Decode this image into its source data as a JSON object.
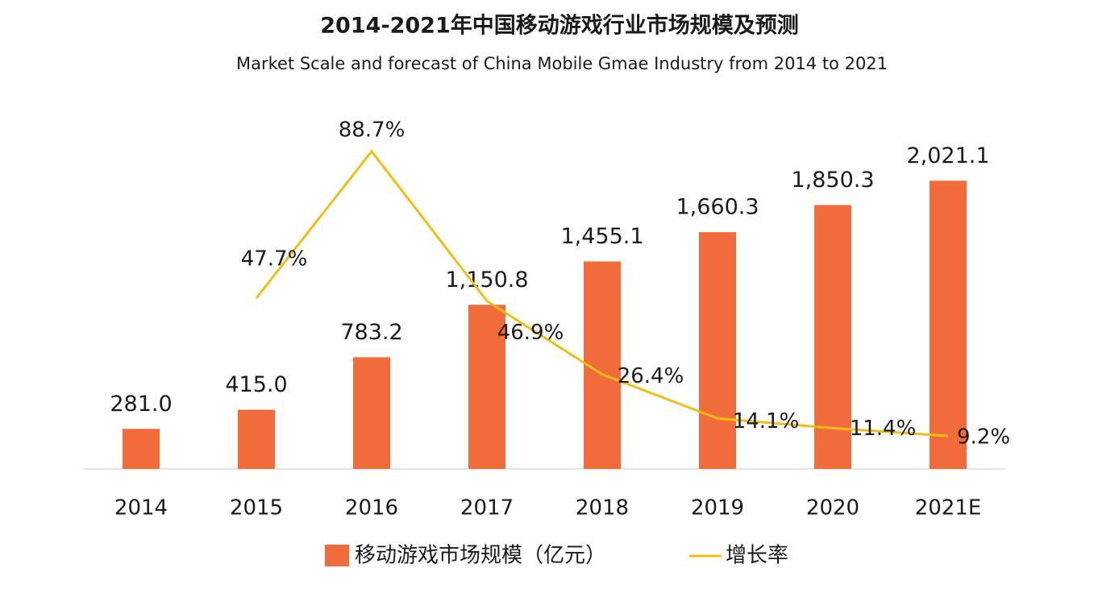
{
  "chart_data": {
    "type": "combo",
    "title": "2014-2021年中国移动游戏行业市场规模及预测",
    "subtitle": "Market Scale and forecast of China Mobile Gmae Industry from 2014 to 2021",
    "categories": [
      "2014",
      "2015",
      "2016",
      "2017",
      "2018",
      "2019",
      "2020",
      "2021E"
    ],
    "series": [
      {
        "name": "移动游戏市场规模（亿元）",
        "type": "bar",
        "color": "#f26b3a",
        "values": [
          281.0,
          415.0,
          783.2,
          1150.8,
          1455.1,
          1660.3,
          1850.3,
          2021.1
        ],
        "value_labels": [
          "281.0",
          "415.0",
          "783.2",
          "1,150.8",
          "1,455.1",
          "1,660.3",
          "1,850.3",
          "2,021.1"
        ]
      },
      {
        "name": "增长率",
        "type": "line",
        "axis": "y2",
        "color": "#f2bd14",
        "values": [
          null,
          47.7,
          88.7,
          46.9,
          26.4,
          14.1,
          11.4,
          9.2
        ],
        "value_labels": [
          null,
          "47.7%",
          "88.7%",
          "46.9%",
          "26.4%",
          "14.1%",
          "11.4%",
          "9.2%"
        ]
      }
    ],
    "ylim": [
      0,
      2260
    ],
    "y2lim": [
      0,
      90
    ],
    "legend": "bottom"
  }
}
